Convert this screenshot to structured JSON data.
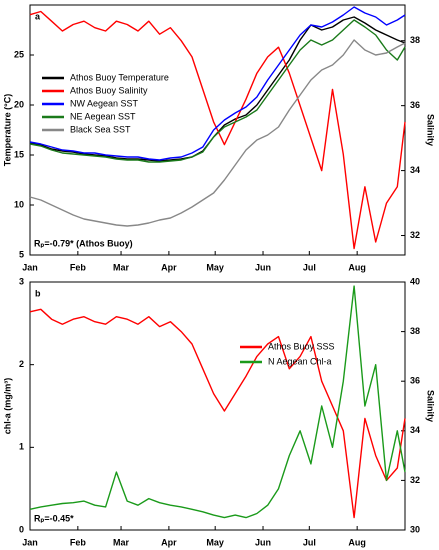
{
  "chart_data": [
    {
      "type": "line",
      "panel_label": "a",
      "annotation": "Rₚ=-0.79* (Athos Buoy)",
      "ylabel": "Temperature (°C)",
      "y2label": "Salinity",
      "x": [
        0,
        7,
        14,
        21,
        28,
        35,
        42,
        49,
        56,
        63,
        70,
        77,
        84,
        91,
        98,
        105,
        112,
        119,
        126,
        133,
        140,
        147,
        154,
        161,
        168,
        175,
        182,
        189,
        196,
        203,
        210,
        217,
        224,
        231,
        238,
        243
      ],
      "xlim": [
        0,
        243
      ],
      "xticks": [
        {
          "value": 0,
          "label": "Jan"
        },
        {
          "value": 31,
          "label": "Feb"
        },
        {
          "value": 59,
          "label": "Mar"
        },
        {
          "value": 90,
          "label": "Apr"
        },
        {
          "value": 120,
          "label": "May"
        },
        {
          "value": 151,
          "label": "Jun"
        },
        {
          "value": 181,
          "label": "Jul"
        },
        {
          "value": 212,
          "label": "Aug"
        }
      ],
      "ylim": [
        5,
        30
      ],
      "yticks": [
        5,
        10,
        15,
        20,
        25
      ],
      "y2lim": [
        31.4,
        39.1
      ],
      "y2ticks": [
        32,
        34,
        36,
        38
      ],
      "series": [
        {
          "name": "Athos Buoy Temperature",
          "color": "#000000",
          "values": [
            16.2,
            16.0,
            15.6,
            15.4,
            15.3,
            15.1,
            15.0,
            14.9,
            14.7,
            14.6,
            14.6,
            14.5,
            14.4,
            14.5,
            14.6,
            14.8,
            15.4,
            16.8,
            18.0,
            18.6,
            19.0,
            20.0,
            21.5,
            23.0,
            24.5,
            26.5,
            28.0,
            27.5,
            27.8,
            28.5,
            28.8,
            28.2,
            27.5,
            27.0,
            26.5,
            26.2
          ]
        },
        {
          "name": "Athos Buoy Salinity",
          "color": "#ff0000",
          "axis": "y2",
          "values": [
            38.8,
            38.9,
            38.6,
            38.3,
            38.5,
            38.6,
            38.4,
            38.3,
            38.6,
            38.5,
            38.3,
            38.6,
            38.2,
            38.4,
            38.0,
            37.5,
            36.5,
            35.5,
            34.8,
            35.5,
            36.2,
            37.0,
            37.5,
            37.8,
            37.0,
            36.0,
            35.0,
            34.0,
            36.5,
            34.5,
            31.6,
            33.5,
            31.8,
            33.0,
            33.5,
            35.5
          ]
        },
        {
          "name": "NW Aegean SST",
          "color": "#0000ff",
          "values": [
            16.3,
            16.1,
            15.8,
            15.5,
            15.4,
            15.2,
            15.2,
            15.0,
            14.9,
            14.8,
            14.8,
            14.6,
            14.5,
            14.7,
            14.8,
            15.2,
            15.8,
            17.5,
            18.5,
            19.2,
            19.8,
            20.8,
            22.5,
            24.0,
            25.5,
            27.0,
            28.0,
            27.8,
            28.3,
            29.0,
            29.8,
            29.2,
            28.8,
            28.0,
            28.5,
            29.0
          ]
        },
        {
          "name": "NE Aegean SST",
          "color": "#1a7a1a",
          "values": [
            16.1,
            15.9,
            15.5,
            15.2,
            15.1,
            15.0,
            14.9,
            14.8,
            14.6,
            14.5,
            14.5,
            14.3,
            14.3,
            14.4,
            14.5,
            14.8,
            15.3,
            16.8,
            17.8,
            18.3,
            18.8,
            19.5,
            21.0,
            22.5,
            24.0,
            25.5,
            26.5,
            26.0,
            26.5,
            27.5,
            28.5,
            27.8,
            27.0,
            25.5,
            24.5,
            25.8
          ]
        },
        {
          "name": "Black Sea SST",
          "color": "#888888",
          "values": [
            10.8,
            10.5,
            10.0,
            9.5,
            9.0,
            8.6,
            8.4,
            8.2,
            8.0,
            7.9,
            8.0,
            8.2,
            8.5,
            8.7,
            9.2,
            9.8,
            10.5,
            11.2,
            12.5,
            14.0,
            15.5,
            16.5,
            17.0,
            17.8,
            19.5,
            21.0,
            22.5,
            23.5,
            24.0,
            25.0,
            26.5,
            25.5,
            25.0,
            25.2,
            25.8,
            26.2
          ]
        }
      ]
    },
    {
      "type": "line",
      "panel_label": "b",
      "annotation": "Rₚ=-0.45*",
      "ylabel": "chl-a (mg/m³)",
      "y2label": "Salinity",
      "x": [
        0,
        7,
        14,
        21,
        28,
        35,
        42,
        49,
        56,
        63,
        70,
        77,
        84,
        91,
        98,
        105,
        112,
        119,
        126,
        133,
        140,
        147,
        154,
        161,
        168,
        175,
        182,
        189,
        196,
        203,
        210,
        217,
        224,
        231,
        238,
        243
      ],
      "xlim": [
        0,
        243
      ],
      "xticks": [
        {
          "value": 0,
          "label": "Jan"
        },
        {
          "value": 31,
          "label": "Feb"
        },
        {
          "value": 59,
          "label": "Mar"
        },
        {
          "value": 90,
          "label": "Apr"
        },
        {
          "value": 120,
          "label": "May"
        },
        {
          "value": 151,
          "label": "Jun"
        },
        {
          "value": 181,
          "label": "Jul"
        },
        {
          "value": 212,
          "label": "Aug"
        }
      ],
      "ylim": [
        0,
        3
      ],
      "yticks": [
        0,
        1,
        2,
        3
      ],
      "y2lim": [
        30,
        40
      ],
      "y2ticks": [
        30,
        32,
        34,
        36,
        38,
        40
      ],
      "series": [
        {
          "name": "Athos Buoy SSS",
          "color": "#ff0000",
          "axis": "y2",
          "values": [
            38.8,
            38.9,
            38.5,
            38.3,
            38.5,
            38.6,
            38.4,
            38.3,
            38.6,
            38.5,
            38.3,
            38.6,
            38.2,
            38.4,
            38.0,
            37.5,
            36.5,
            35.5,
            34.8,
            35.5,
            36.2,
            37.0,
            37.5,
            37.8,
            36.5,
            37.0,
            37.8,
            36.0,
            35.0,
            34.0,
            30.5,
            34.5,
            33.0,
            32.0,
            32.5,
            34.5
          ]
        },
        {
          "name": "N Aegean Chl-a",
          "color": "#1a9a1a",
          "values": [
            0.25,
            0.28,
            0.3,
            0.32,
            0.33,
            0.35,
            0.3,
            0.28,
            0.7,
            0.35,
            0.3,
            0.38,
            0.33,
            0.3,
            0.28,
            0.25,
            0.22,
            0.18,
            0.15,
            0.18,
            0.15,
            0.2,
            0.3,
            0.5,
            0.9,
            1.2,
            0.8,
            1.5,
            1.0,
            1.8,
            2.95,
            1.5,
            2.0,
            0.6,
            1.2,
            0.7
          ]
        }
      ]
    }
  ]
}
